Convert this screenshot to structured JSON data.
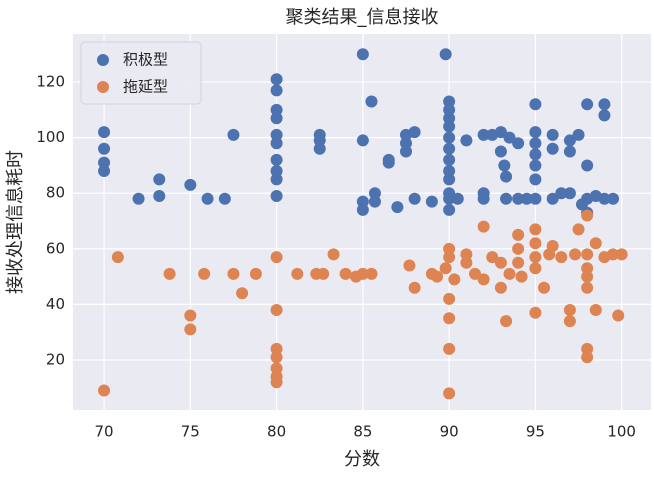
{
  "chart_data": {
    "type": "scatter",
    "title": "聚类结果_信息接收",
    "x_label": "分数",
    "y_label": "接收处理信息耗时",
    "xlim": [
      68.2,
      101.7
    ],
    "ylim": [
      2,
      137.3
    ],
    "xticks": [
      70,
      75,
      80,
      85,
      90,
      95,
      100
    ],
    "yticks": [
      20,
      40,
      60,
      80,
      100,
      120
    ],
    "grid": true,
    "legend": "upper left",
    "background": "#eaeaf2",
    "series": [
      {
        "name": "积极型",
        "color": "#4c72b0",
        "x": [
          70,
          70,
          70,
          70,
          72,
          73.2,
          73.2,
          75,
          76,
          77,
          77.5,
          80,
          80,
          80,
          80,
          80,
          80,
          80,
          80,
          80,
          80,
          82.5,
          82.5,
          82.5,
          85,
          85,
          85,
          85,
          85.5,
          85.7,
          85.7,
          86.5,
          86.5,
          87,
          87.5,
          87.5,
          87.5,
          88,
          88,
          89,
          89.8,
          90,
          90,
          90,
          90,
          90,
          90,
          90,
          90,
          90,
          90,
          90,
          90,
          90.5,
          91,
          92,
          92,
          92,
          92.5,
          93,
          93,
          93.2,
          93.3,
          93.3,
          93.5,
          94,
          94,
          94.5,
          95,
          95,
          95,
          95,
          95,
          95,
          95,
          96,
          96,
          96,
          96.5,
          97,
          97,
          97,
          97.5,
          97.7,
          98,
          98,
          98,
          98,
          98.5,
          99,
          99,
          99,
          99.5
        ],
        "values": [
          102,
          96,
          91,
          88,
          78,
          85,
          79,
          83,
          78,
          78,
          101,
          121,
          117,
          110,
          107,
          101,
          98,
          92,
          88,
          85,
          79,
          101,
          99,
          96,
          130,
          99,
          77,
          74,
          113,
          80,
          77,
          92,
          91,
          75,
          101,
          98,
          95,
          102,
          78,
          77,
          130,
          113,
          110,
          107,
          104,
          100,
          96,
          92,
          88,
          85,
          80,
          78,
          74,
          78,
          99,
          101,
          78,
          80,
          101,
          95,
          102,
          90,
          86,
          78,
          100,
          98,
          78,
          78,
          112,
          102,
          98,
          94,
          90,
          85,
          78,
          101,
          96,
          78,
          80,
          99,
          95,
          80,
          101,
          76,
          112,
          90,
          78,
          73,
          79,
          112,
          108,
          78,
          78
        ]
      },
      {
        "name": "拖延型",
        "color": "#dd8452",
        "x": [
          70,
          70.8,
          73.8,
          75,
          75,
          75.8,
          77.5,
          78,
          78.8,
          80,
          80,
          80,
          80,
          80,
          80,
          80,
          81.2,
          82.3,
          82.7,
          83.3,
          84,
          84.6,
          85,
          85.5,
          87.7,
          88,
          89,
          89.3,
          89.8,
          90,
          90,
          90,
          90,
          90,
          90,
          90.3,
          91,
          91,
          91.5,
          92,
          92,
          92.5,
          93,
          93,
          93.3,
          93.5,
          94,
          94,
          94,
          94.2,
          95,
          95,
          95,
          95,
          95,
          95.5,
          95.8,
          96,
          96.5,
          97,
          97,
          97.3,
          97.5,
          98,
          98,
          98,
          98,
          98,
          98,
          98,
          98.5,
          98.5,
          99,
          99.5,
          99.8,
          100
        ],
        "values": [
          9,
          57,
          51,
          36,
          31,
          51,
          51,
          44,
          51,
          57,
          38,
          24,
          21,
          17,
          14,
          12,
          51,
          51,
          51,
          58,
          51,
          50,
          51,
          51,
          54,
          46,
          51,
          50,
          53,
          60,
          57,
          42,
          35,
          24,
          8,
          49,
          58,
          55,
          51,
          68,
          49,
          57,
          55,
          46,
          34,
          51,
          65,
          60,
          55,
          50,
          67,
          62,
          57,
          53,
          37,
          46,
          58,
          61,
          57,
          38,
          34,
          58,
          67,
          72,
          58,
          53,
          50,
          46,
          24,
          21,
          62,
          38,
          57,
          58,
          36,
          58
        ]
      }
    ]
  }
}
